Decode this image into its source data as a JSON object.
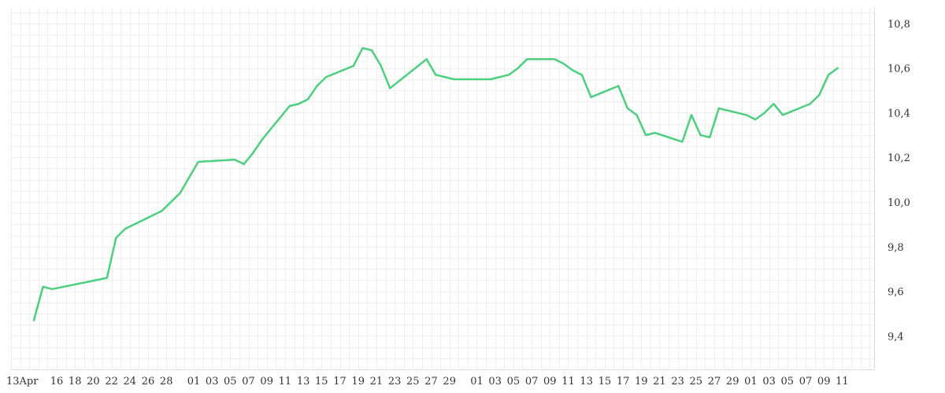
{
  "chart_data": {
    "type": "line",
    "title": "",
    "xlabel": "",
    "ylabel": "",
    "y_axis_position": "right",
    "grid": true,
    "ylim": [
      9.25,
      10.87
    ],
    "y_ticks": [
      "9,4",
      "9,6",
      "9,8",
      "10,0",
      "10,2",
      "10,4",
      "10,6",
      "10,8"
    ],
    "y_tick_values": [
      9.4,
      9.6,
      9.8,
      10.0,
      10.2,
      10.4,
      10.6,
      10.8
    ],
    "x_ticks": [
      "13Apr",
      "16",
      "18",
      "20",
      "22",
      "24",
      "26",
      "28",
      "01",
      "03",
      "05",
      "07",
      "09",
      "11",
      "13",
      "15",
      "17",
      "19",
      "21",
      "23",
      "25",
      "27",
      "29",
      "01",
      "03",
      "05",
      "07",
      "09",
      "11",
      "13",
      "15",
      "17",
      "19",
      "21",
      "23",
      "25",
      "27",
      "29",
      "01",
      "03",
      "05",
      "07",
      "09",
      "11"
    ],
    "x_tick_days": [
      0,
      3,
      5,
      7,
      9,
      11,
      13,
      15,
      18,
      20,
      22,
      24,
      26,
      28,
      30,
      32,
      34,
      36,
      38,
      40,
      42,
      44,
      46,
      49,
      51,
      53,
      55,
      57,
      59,
      61,
      63,
      65,
      67,
      69,
      71,
      73,
      75,
      77,
      79,
      81,
      83,
      85,
      87,
      89
    ],
    "x_range_days": [
      -2,
      92.5
    ],
    "series": [
      {
        "color": "#4cd07d",
        "points": [
          [
            0.5,
            9.47
          ],
          [
            1.5,
            9.62
          ],
          [
            2.5,
            9.61
          ],
          [
            8.5,
            9.66
          ],
          [
            9.5,
            9.84
          ],
          [
            10.5,
            9.88
          ],
          [
            14.5,
            9.96
          ],
          [
            16.5,
            10.04
          ],
          [
            18.5,
            10.18
          ],
          [
            22.5,
            10.19
          ],
          [
            23.5,
            10.17
          ],
          [
            24.5,
            10.22
          ],
          [
            25.5,
            10.28
          ],
          [
            28.5,
            10.43
          ],
          [
            29.5,
            10.44
          ],
          [
            30.5,
            10.46
          ],
          [
            31.5,
            10.52
          ],
          [
            32.5,
            10.56
          ],
          [
            35.5,
            10.61
          ],
          [
            36.5,
            10.69
          ],
          [
            37.5,
            10.68
          ],
          [
            38.5,
            10.61
          ],
          [
            39.5,
            10.51
          ],
          [
            43.5,
            10.64
          ],
          [
            44.5,
            10.57
          ],
          [
            46.5,
            10.55
          ],
          [
            50.5,
            10.55
          ],
          [
            51.5,
            10.56
          ],
          [
            52.5,
            10.57
          ],
          [
            53.5,
            10.6
          ],
          [
            54.5,
            10.64
          ],
          [
            57.5,
            10.64
          ],
          [
            58.5,
            10.62
          ],
          [
            59.5,
            10.59
          ],
          [
            60.5,
            10.57
          ],
          [
            61.5,
            10.47
          ],
          [
            64.5,
            10.52
          ],
          [
            65.5,
            10.42
          ],
          [
            66.5,
            10.39
          ],
          [
            67.5,
            10.3
          ],
          [
            68.5,
            10.31
          ],
          [
            71.5,
            10.27
          ],
          [
            72.5,
            10.39
          ],
          [
            73.5,
            10.3
          ],
          [
            74.5,
            10.29
          ],
          [
            75.5,
            10.42
          ],
          [
            78.5,
            10.39
          ],
          [
            79.5,
            10.37
          ],
          [
            80.5,
            10.4
          ],
          [
            81.5,
            10.44
          ],
          [
            82.5,
            10.39
          ],
          [
            85.5,
            10.44
          ],
          [
            86.5,
            10.48
          ],
          [
            87.5,
            10.57
          ],
          [
            88.5,
            10.6
          ]
        ]
      }
    ]
  }
}
